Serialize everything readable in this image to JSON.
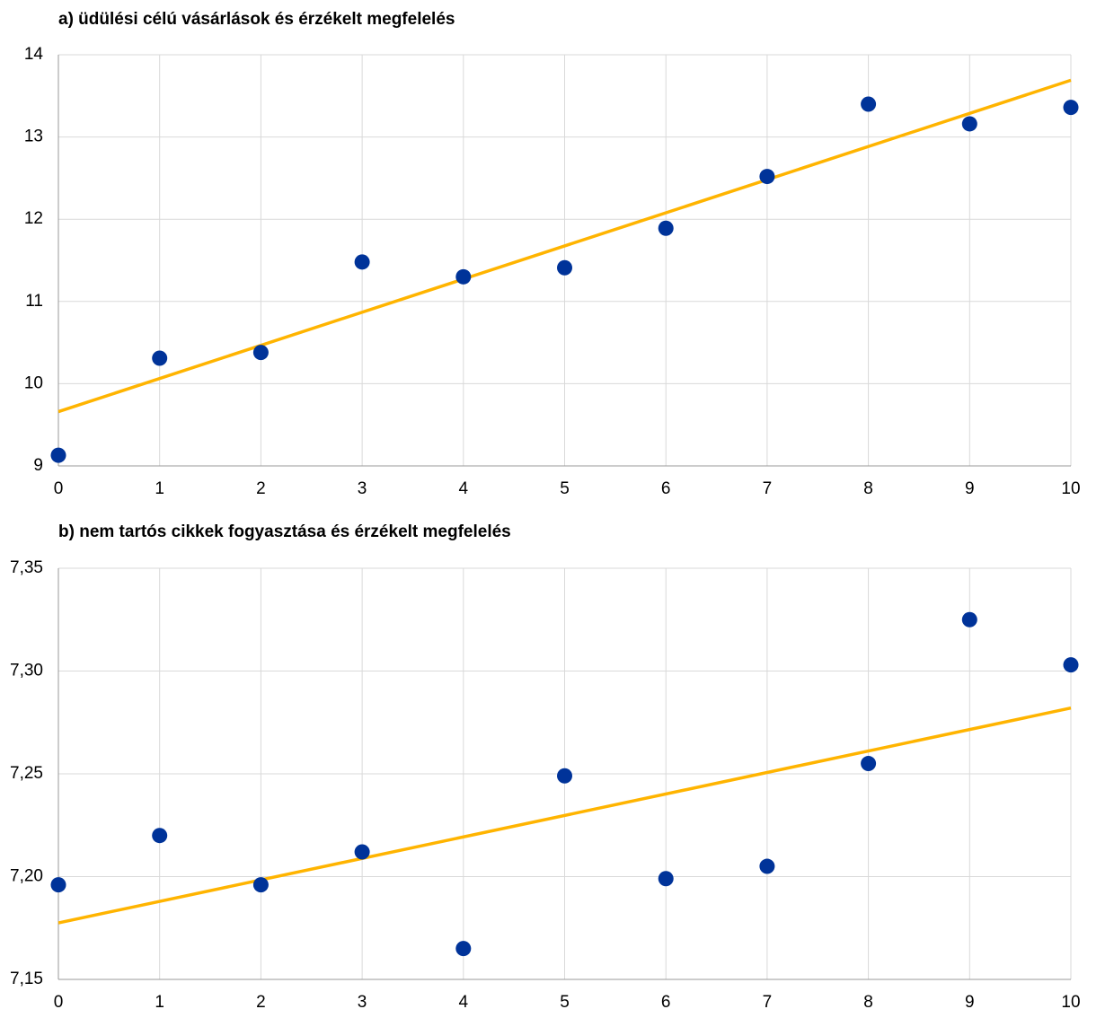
{
  "chart_data": [
    {
      "type": "scatter",
      "title": "a) üdülési célú vásárlások és érzékelt megfelelés",
      "x": [
        0,
        1,
        2,
        3,
        4,
        5,
        6,
        7,
        8,
        9,
        10
      ],
      "values": [
        9.13,
        10.31,
        10.38,
        11.48,
        11.3,
        11.41,
        11.89,
        12.52,
        13.4,
        13.16,
        13.36
      ],
      "color": "#003399",
      "trend": {
        "x": [
          0,
          10
        ],
        "values": [
          9.66,
          13.69
        ],
        "color": "#ffb400"
      },
      "xlim": [
        0,
        10
      ],
      "xticks": [
        0,
        1,
        2,
        3,
        4,
        5,
        6,
        7,
        8,
        9,
        10
      ],
      "ylim": [
        9,
        14
      ],
      "yticks": [
        9,
        10,
        11,
        12,
        13,
        14
      ],
      "grid": true
    },
    {
      "type": "scatter",
      "title": "b) nem tartós cikkek fogyasztása és érzékelt megfelelés",
      "x": [
        0,
        1,
        2,
        3,
        4,
        5,
        6,
        7,
        8,
        9,
        10
      ],
      "values": [
        7.196,
        7.22,
        7.196,
        7.212,
        7.165,
        7.249,
        7.199,
        7.205,
        7.255,
        7.325,
        7.303
      ],
      "color": "#003399",
      "trend": {
        "x": [
          0,
          10
        ],
        "values": [
          7.1775,
          7.282
        ],
        "color": "#ffb400"
      },
      "xlim": [
        0,
        10
      ],
      "xticks": [
        0,
        1,
        2,
        3,
        4,
        5,
        6,
        7,
        8,
        9,
        10
      ],
      "ylim": [
        7.15,
        7.35
      ],
      "yticks": [
        {
          "value": 7.15,
          "label": "7,15"
        },
        {
          "value": 7.2,
          "label": "7,20"
        },
        {
          "value": 7.25,
          "label": "7,25"
        },
        {
          "value": 7.3,
          "label": "7,30"
        },
        {
          "value": 7.35,
          "label": "7,35"
        }
      ],
      "grid": true
    }
  ]
}
